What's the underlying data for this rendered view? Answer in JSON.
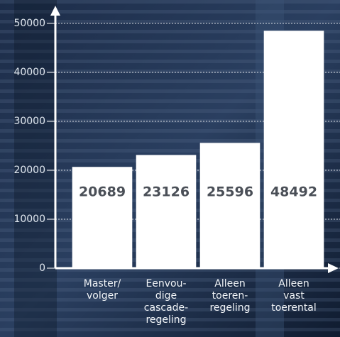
{
  "chart_data": {
    "type": "bar",
    "categories": [
      "Master/\nvolger",
      "Eenvou-\ndige\ncascade-\nregeling",
      "Alleen\ntoeren-\nregeling",
      "Alleen\nvast\ntoerental"
    ],
    "values": [
      20689,
      23126,
      25596,
      48492
    ],
    "color": "#ffffff",
    "ylim": [
      0,
      50000
    ],
    "yticks": [
      0,
      10000,
      20000,
      30000,
      40000,
      50000
    ],
    "grid": true
  }
}
